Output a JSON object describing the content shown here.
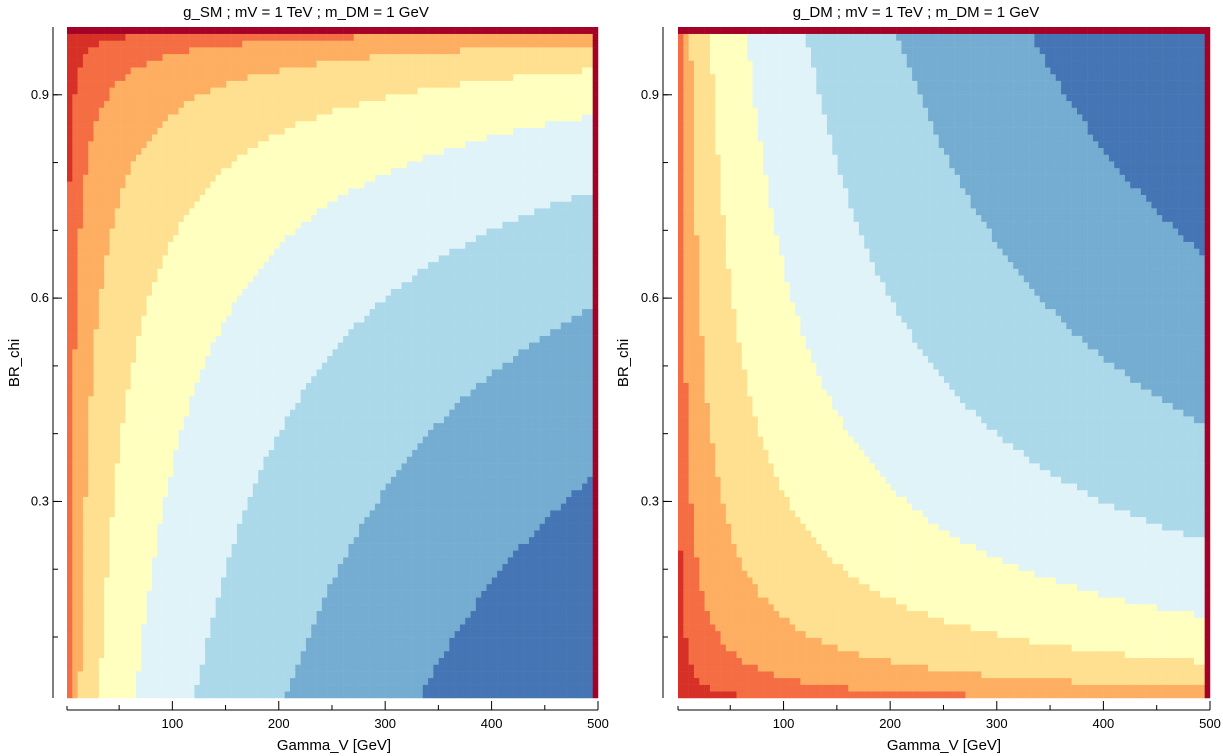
{
  "chart_data": [
    {
      "type": "heatmap",
      "title": "g_SM ; mV = 1 TeV ; m_DM = 1 GeV",
      "xlabel": "Gamma_V [GeV]",
      "ylabel": "BR_chi",
      "xlim": [
        1,
        500
      ],
      "ylim": [
        0.01,
        1.0
      ],
      "x_ticks": [
        100,
        200,
        300,
        400,
        500
      ],
      "y_ticks": [
        0.3,
        0.6,
        0.9
      ],
      "x_tick_labels": [
        "100",
        "200",
        "300",
        "400",
        "500"
      ],
      "y_tick_labels": [
        "0.3",
        "0.6",
        "0.9"
      ],
      "x_minor_step": 50,
      "y_minor_step": 0.1,
      "surface": "g_SM",
      "palette": [
        "#a50026",
        "#d73027",
        "#f46d43",
        "#fdae61",
        "#fee090",
        "#ffffbf",
        "#e0f3f8",
        "#abd9e9",
        "#74add1",
        "#4575b4",
        "#313695"
      ]
    },
    {
      "type": "heatmap",
      "title": "g_DM ; mV = 1 TeV ; m_DM = 1 GeV",
      "xlabel": "Gamma_V [GeV]",
      "ylabel": "BR_chi",
      "xlim": [
        1,
        500
      ],
      "ylim": [
        0.01,
        1.0
      ],
      "x_ticks": [
        100,
        200,
        300,
        400,
        500
      ],
      "y_ticks": [
        0.3,
        0.6,
        0.9
      ],
      "x_tick_labels": [
        "100",
        "200",
        "300",
        "400",
        "500"
      ],
      "y_tick_labels": [
        "0.3",
        "0.6",
        "0.9"
      ],
      "x_minor_step": 50,
      "y_minor_step": 0.1,
      "surface": "g_DM",
      "palette": [
        "#a50026",
        "#d73027",
        "#f46d43",
        "#fdae61",
        "#fee090",
        "#ffffbf",
        "#e0f3f8",
        "#abd9e9",
        "#74add1",
        "#4575b4",
        "#313695"
      ]
    }
  ]
}
